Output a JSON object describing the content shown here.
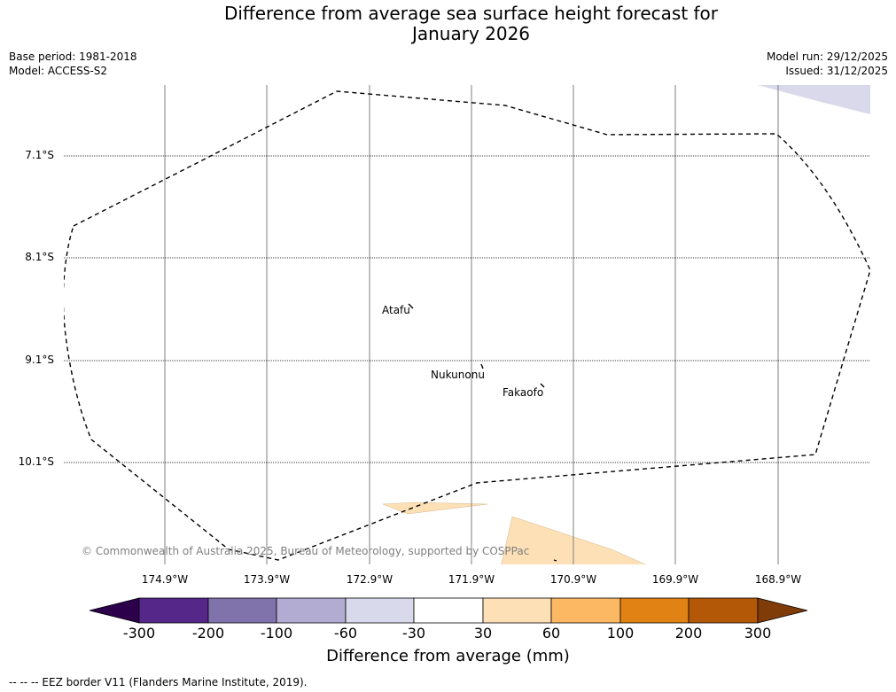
{
  "title": {
    "line1": "Difference from average sea surface height forecast for",
    "line2": "January 2026"
  },
  "meta_left": {
    "base_period": "Base period: 1981-2018",
    "model": "Model: ACCESS-S2"
  },
  "meta_right": {
    "model_run": "Model run: 29/12/2025",
    "issued": "Issued: 31/12/2025"
  },
  "map": {
    "latitude_labels": [
      "7.1°S",
      "8.1°S",
      "9.1°S",
      "10.1°S"
    ],
    "longitude_labels": [
      "174.9°W",
      "173.9°W",
      "172.9°W",
      "171.9°W",
      "170.9°W",
      "169.9°W",
      "168.9°W"
    ],
    "places": {
      "atafu": "Atafu",
      "nukunonu": "Nukunonu",
      "fakaofo": "Fakaofo"
    },
    "copyright": "© Commonwealth of Australia 2025, Bureau of Meteorology, supported by COSPPac",
    "colors": {
      "low_anomaly_fill": "#d9d9eb",
      "high_anomaly_fill": "#fee0b6",
      "eez_border": "#000000",
      "grid": "#7f7f7f"
    }
  },
  "colorbar": {
    "title": "Difference from average (mm)",
    "tick_labels": [
      "-300",
      "-200",
      "-100",
      "-60",
      "-30",
      "30",
      "60",
      "100",
      "200",
      "300"
    ],
    "colors": [
      "#2d004b",
      "#542788",
      "#8073ac",
      "#b2abd2",
      "#d8daeb",
      "#ffffff",
      "#fee0b6",
      "#fdb863",
      "#e08214",
      "#b35806",
      "#7f3b08"
    ]
  },
  "footer": "--  --  -- EEZ border V11 (Flanders Marine Institute, 2019)."
}
